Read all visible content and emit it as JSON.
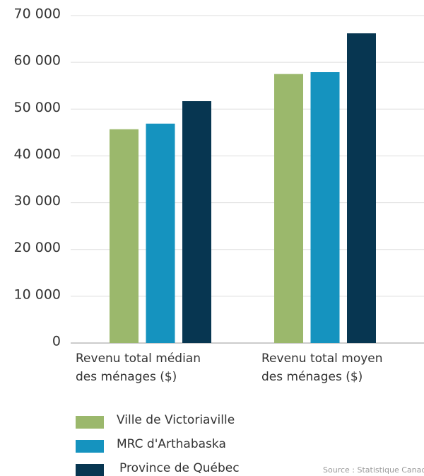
{
  "chart_data": {
    "type": "bar",
    "categories": [
      "Revenu total médian\ndes ménages ($)",
      "Revenu total moyen\ndes ménages ($)"
    ],
    "series": [
      {
        "name": "Ville de Victoriaville",
        "color": "#9bb86c",
        "values": [
          45700,
          57500
        ]
      },
      {
        "name": "MRC d'Arthabaska",
        "color": "#1593bf",
        "values": [
          46900,
          57900
        ]
      },
      {
        "name": "Province de Québec",
        "color": "#073651",
        "values": [
          51700,
          66200
        ]
      }
    ],
    "ylim": [
      0,
      70000
    ],
    "yticks": [
      0,
      {
        "value": 10000,
        "label": "10 000"
      },
      {
        "value": 20000,
        "label": "20 000"
      },
      {
        "value": 30000,
        "label": "30 000"
      },
      {
        "value": 40000,
        "label": "40 000"
      },
      {
        "value": 50000,
        "label": "50 000"
      },
      {
        "value": 60000,
        "label": "60 000"
      },
      {
        "value": 70000,
        "label": "70 000"
      }
    ],
    "grid": true,
    "source": "Source : Statistique Canada"
  }
}
